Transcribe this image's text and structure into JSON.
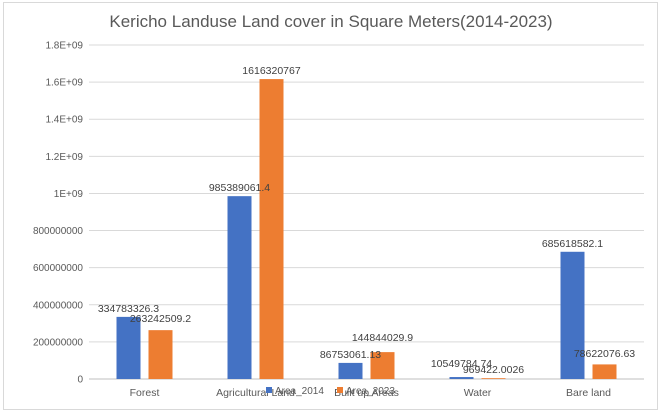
{
  "chart_data": {
    "type": "bar",
    "title": "Kericho Landuse Land cover in Square Meters(2014-2023)",
    "categories": [
      "Forest",
      "Agricultural Land",
      "Built up Areas",
      "Water",
      "Bare land"
    ],
    "series": [
      {
        "name": "Area_2014",
        "color": "#4472C4",
        "values": [
          334783326.3,
          985389061.4,
          86753061.13,
          10549784.74,
          685618582.1
        ],
        "labels": [
          "334783326.3",
          "985389061.4",
          "86753061.13",
          "10549784.74",
          "685618582.1"
        ]
      },
      {
        "name": "Area_2023",
        "color": "#ED7D31",
        "values": [
          263242509.2,
          1616320767,
          144844029.9,
          969422.0026,
          78622076.63
        ],
        "labels": [
          "263242509.2",
          "1616320767",
          "144844029.9",
          "969422.0026",
          "78622076.63"
        ]
      }
    ],
    "ylim": [
      0,
      1800000000
    ],
    "yticks": [
      0,
      200000000,
      400000000,
      600000000,
      800000000,
      1000000000,
      1200000000,
      1400000000,
      1600000000,
      1800000000
    ],
    "ytick_labels": [
      "0",
      "200000000",
      "400000000",
      "600000000",
      "800000000",
      "1E+09",
      "1.2E+09",
      "1.4E+09",
      "1.6E+09",
      "1.8E+09"
    ],
    "xlabel": "",
    "ylabel": "",
    "grid": true,
    "legend": "bottom"
  }
}
